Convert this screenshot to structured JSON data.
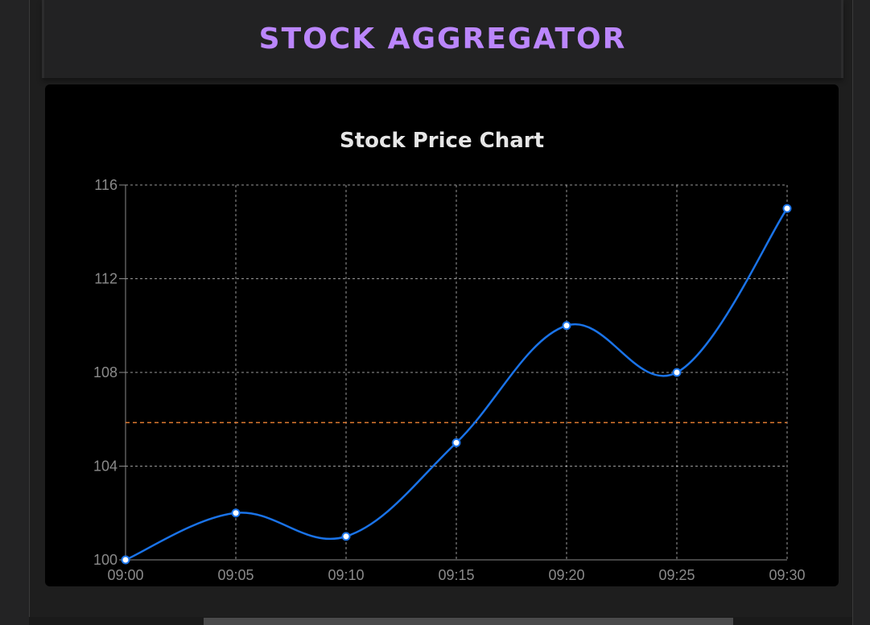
{
  "app": {
    "title": "STOCK AGGREGATOR"
  },
  "colors": {
    "accent": "#bb86fc",
    "line": "#1a73e8",
    "reference_line": "#e07a30",
    "grid": "#cccccc",
    "card_background": "#000000"
  },
  "chart_data": {
    "type": "line",
    "title": "Stock Price Chart",
    "xlabel": "",
    "ylabel": "",
    "categories": [
      "09:00",
      "09:05",
      "09:10",
      "09:15",
      "09:20",
      "09:25",
      "09:30"
    ],
    "series": [
      {
        "values": [
          100,
          102,
          101,
          105,
          110,
          108,
          115
        ]
      }
    ],
    "reference_line": {
      "value": 105.86
    },
    "yticks": [
      100,
      104,
      108,
      112,
      116
    ],
    "ylim": [
      100,
      116
    ],
    "grid": true,
    "grid_style": "dashed",
    "smooth": true,
    "legend": "none"
  }
}
